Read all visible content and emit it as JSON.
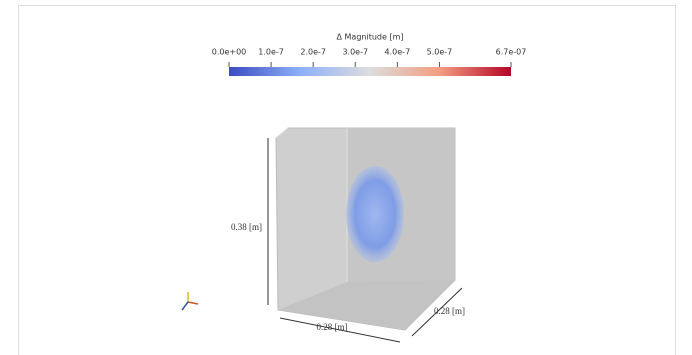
{
  "colorbar": {
    "title": "Δ Magnitude [m]",
    "range": [
      0,
      6.7e-07
    ],
    "ticks": [
      {
        "value": 0,
        "label": "0.0e+00"
      },
      {
        "value": 1e-07,
        "label": "1.0e-7"
      },
      {
        "value": 2e-07,
        "label": "2.0e-7"
      },
      {
        "value": 3e-07,
        "label": "3.0e-7"
      },
      {
        "value": 4e-07,
        "label": "4.0e-7"
      },
      {
        "value": 5e-07,
        "label": "5.0e-7"
      },
      {
        "value": 6.7e-07,
        "label": "6.7e-07"
      }
    ]
  },
  "axes": {
    "height": "0.38 [m]",
    "width": "0.28 [m]",
    "depth": "0.28 [m]"
  }
}
